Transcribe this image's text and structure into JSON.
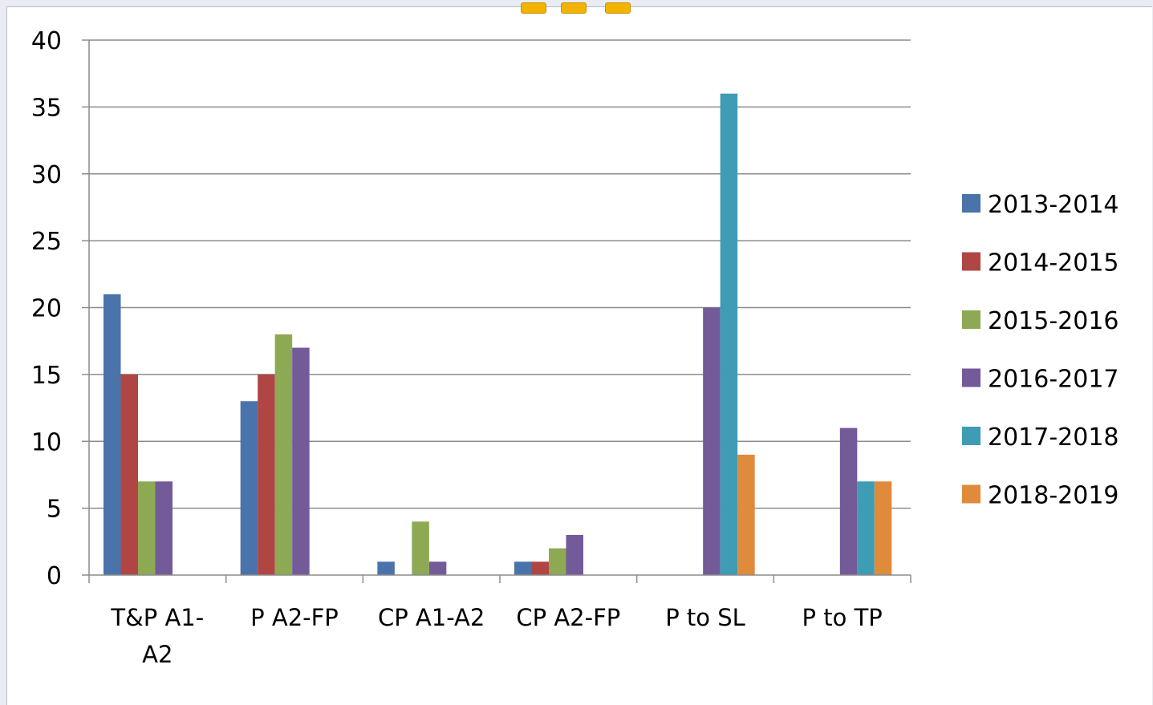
{
  "chart_data": {
    "type": "bar",
    "title": "",
    "xlabel": "",
    "ylabel": "",
    "ylim": [
      0,
      40
    ],
    "yticks": [
      0,
      5,
      10,
      15,
      20,
      25,
      30,
      35,
      40
    ],
    "grid": true,
    "legend_position": "right",
    "categories": [
      [
        "T&P A1-",
        "A2"
      ],
      [
        "P A2-FP"
      ],
      [
        "CP A1-A2"
      ],
      [
        "CP A2-FP"
      ],
      [
        "P to SL"
      ],
      [
        "P to TP"
      ]
    ],
    "series": [
      {
        "name": "2013-2014",
        "color": "#4a73ab",
        "values": [
          21,
          13,
          1,
          1,
          0,
          0
        ]
      },
      {
        "name": "2014-2015",
        "color": "#b04644",
        "values": [
          15,
          15,
          0,
          1,
          0,
          0
        ]
      },
      {
        "name": "2015-2016",
        "color": "#8ea953",
        "values": [
          7,
          18,
          4,
          2,
          0,
          0
        ]
      },
      {
        "name": "2016-2017",
        "color": "#735a98",
        "values": [
          7,
          17,
          1,
          3,
          20,
          11
        ]
      },
      {
        "name": "2017-2018",
        "color": "#3e9cb5",
        "values": [
          0,
          0,
          0,
          0,
          36,
          7
        ]
      },
      {
        "name": "2018-2019",
        "color": "#e08a3c",
        "values": [
          0,
          0,
          0,
          0,
          9,
          7
        ]
      }
    ]
  }
}
